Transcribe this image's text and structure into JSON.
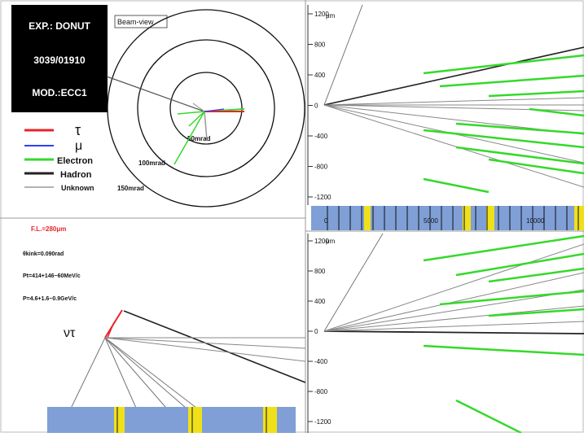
{
  "info_box": {
    "line1": "EXP.: DONUT",
    "line2": "3039/01910",
    "line3": "MOD.:ECC1"
  },
  "legend": {
    "items": [
      {
        "label": "τ",
        "color": "#e8242b"
      },
      {
        "label": "μ",
        "color": "#2f3ff0"
      },
      {
        "label": "Electron",
        "color": "#35d92a"
      },
      {
        "label": "Hadron",
        "color": "#222222"
      },
      {
        "label": "Unknown",
        "color": "#9a9a9a"
      }
    ]
  },
  "beam_view": {
    "title": "Beam-view",
    "rings": [
      "50mrad",
      "100mrad",
      "150mrad"
    ]
  },
  "params": {
    "fl": "F.L.=280μm",
    "theta": "θkink=0.090rad",
    "pt": "Pt=414+146−60MeV/c",
    "p": "P=4.6+1.6−0.9GeV/c"
  },
  "event_label": "ντ",
  "top_plot": {
    "unit": "μm",
    "yticks": [
      "1200",
      "800",
      "400",
      "0",
      "-400",
      "-800",
      "-1200"
    ],
    "strip_labels": [
      "0",
      "5000",
      "10000"
    ]
  },
  "bottom_plot": {
    "unit": "μm",
    "yticks": [
      "1200",
      "800",
      "400",
      "0",
      "-400",
      "-800",
      "-1200"
    ]
  },
  "colors": {
    "tau": "#e8242b",
    "electron": "#35d92a",
    "hadron": "#222222",
    "unknown": "#9a9a9a",
    "strip_blue": "#7f9fd6",
    "strip_yellow": "#f0e01a"
  }
}
